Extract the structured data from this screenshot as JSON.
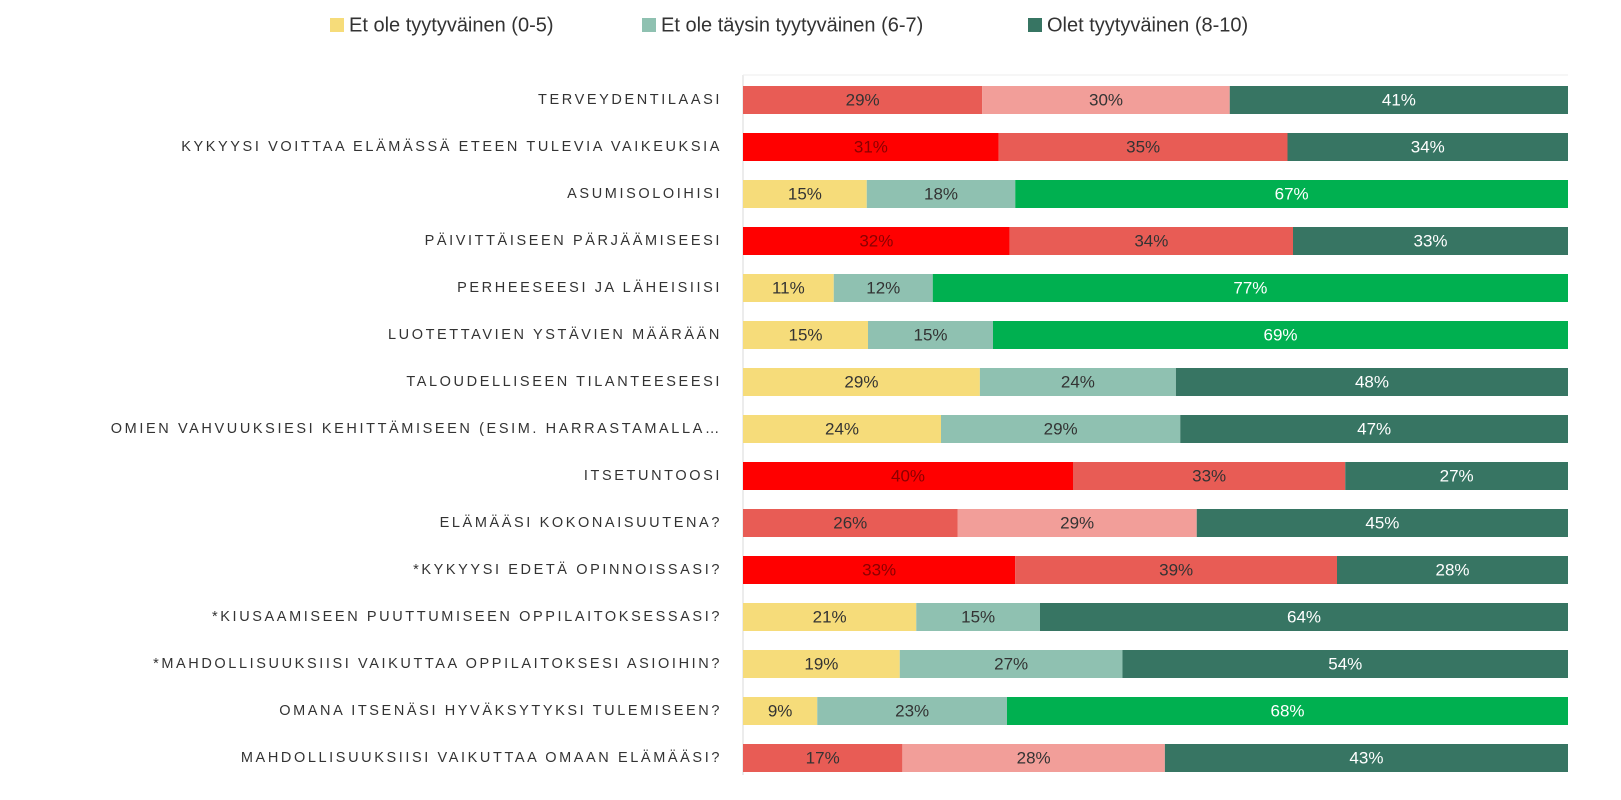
{
  "chart_data": {
    "type": "bar",
    "orientation": "horizontal",
    "stacked": "percent",
    "xlim": [
      0,
      100
    ],
    "legend": "top",
    "categories": [
      "TERVEYDENTILAASI",
      "KYKYYSI VOITTAA ELÄMÄSSÄ ETEEN TULEVIA VAIKEUKSIA",
      "ASUMISOLOIHISI",
      "PÄIVITTÄISEEN PÄRJÄÄMISEESI",
      "PERHEESEESI JA LÄHEISIISI",
      "LUOTETTAVIEN YSTÄVIEN MÄÄRÄÄN",
      "TALOUDELLISEEN TILANTEESEESI",
      "OMIEN VAHVUUKSIESI KEHITTÄMISEEN (ESIM. HARRASTAMALLA…",
      "ITSETUNTOOSI",
      "ELÄMÄÄSI KOKONAISUUTENA?",
      "*KYKYYSI EDETÄ OPINNOISSASI?",
      "*KIUSAAMISEEN PUUTTUMISEEN OPPILAITOKSESSASI?",
      "*MAHDOLLISUUKSIISI VAIKUTTAA OPPILAITOKSESI ASIOIHIN?",
      "OMANA ITSENÄSI HYVÄKSYTYKSI TULEMISEEN?",
      "MAHDOLLISUUKSIISI VAIKUTTAA OMAAN ELÄMÄÄSI?"
    ],
    "series": [
      {
        "name": "Et ole tyytyväinen (0-5)",
        "color": "#f6dc7a",
        "values": [
          29,
          31,
          15,
          32,
          11,
          15,
          29,
          24,
          40,
          26,
          33,
          21,
          19,
          9,
          17
        ],
        "value_labels": [
          "29%",
          "31%",
          "15%",
          "32%",
          "11%",
          "15%",
          "29%",
          "24%",
          "40%",
          "26%",
          "33%",
          "21%",
          "19%",
          "9%",
          "17%"
        ],
        "colors": [
          "#e85c55",
          "#ff0000",
          "#f6dc7a",
          "#ff0000",
          "#f6dc7a",
          "#f6dc7a",
          "#f6dc7a",
          "#f6dc7a",
          "#ff0000",
          "#e85c55",
          "#ff0000",
          "#f6dc7a",
          "#f6dc7a",
          "#f6dc7a",
          "#e85c55"
        ]
      },
      {
        "name": "Et ole täysin tyytyväinen (6-7)",
        "color": "#8fc1b1",
        "values": [
          30,
          35,
          18,
          34,
          12,
          15,
          24,
          29,
          33,
          29,
          39,
          15,
          27,
          23,
          28
        ],
        "value_labels": [
          "30%",
          "35%",
          "18%",
          "34%",
          "12%",
          "15%",
          "24%",
          "29%",
          "33%",
          "29%",
          "39%",
          "15%",
          "27%",
          "23%",
          "28%"
        ],
        "colors": [
          "#f29e99",
          "#e85c55",
          "#8fc1b1",
          "#e85c55",
          "#8fc1b1",
          "#8fc1b1",
          "#8fc1b1",
          "#8fc1b1",
          "#e85c55",
          "#f29e99",
          "#e85c55",
          "#8fc1b1",
          "#8fc1b1",
          "#8fc1b1",
          "#f29e99"
        ]
      },
      {
        "name": "Olet tyytyväinen (8-10)",
        "color": "#377563",
        "values": [
          41,
          34,
          67,
          33,
          77,
          69,
          48,
          47,
          27,
          45,
          28,
          64,
          54,
          68,
          43
        ],
        "value_labels": [
          "41%",
          "34%",
          "67%",
          "33%",
          "77%",
          "69%",
          "48%",
          "47%",
          "27%",
          "45%",
          "28%",
          "64%",
          "54%",
          "68%",
          "43%"
        ],
        "colors": [
          "#377563",
          "#377563",
          "#00b050",
          "#377563",
          "#00b050",
          "#00b050",
          "#377563",
          "#377563",
          "#377563",
          "#377563",
          "#377563",
          "#377563",
          "#377563",
          "#00b050",
          "#377563"
        ]
      }
    ]
  }
}
